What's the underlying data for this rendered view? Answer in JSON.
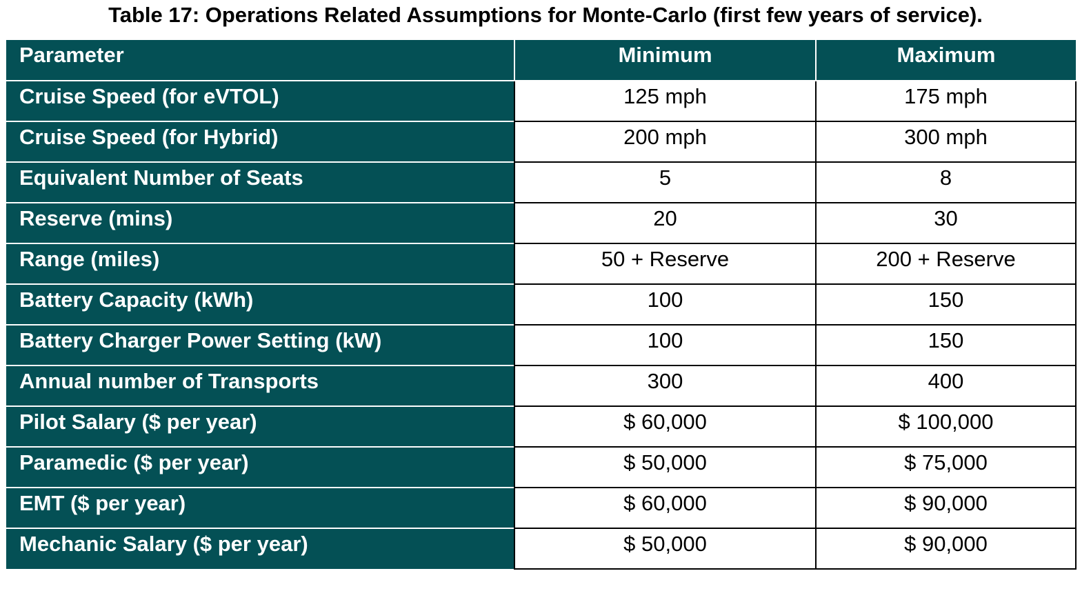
{
  "caption": "Table 17: Operations Related Assumptions for Monte-Carlo (first few years of service).",
  "columns": {
    "parameter": "Parameter",
    "minimum": "Minimum",
    "maximum": "Maximum"
  },
  "rows": [
    {
      "parameter": "Cruise Speed (for eVTOL)",
      "minimum": "125 mph",
      "maximum": "175 mph"
    },
    {
      "parameter": "Cruise Speed (for Hybrid)",
      "minimum": "200 mph",
      "maximum": "300 mph"
    },
    {
      "parameter": "Equivalent Number of Seats",
      "minimum": "5",
      "maximum": "8"
    },
    {
      "parameter": "Reserve (mins)",
      "minimum": "20",
      "maximum": "30"
    },
    {
      "parameter": "Range (miles)",
      "minimum": "50 + Reserve",
      "maximum": "200 + Reserve"
    },
    {
      "parameter": "Battery Capacity (kWh)",
      "minimum": "100",
      "maximum": "150"
    },
    {
      "parameter": "Battery Charger Power Setting (kW)",
      "minimum": "100",
      "maximum": "150"
    },
    {
      "parameter": "Annual number of Transports",
      "minimum": "300",
      "maximum": "400"
    },
    {
      "parameter": "Pilot Salary ($ per year)",
      "minimum": "$ 60,000",
      "maximum": "$ 100,000"
    },
    {
      "parameter": "Paramedic ($ per year)",
      "minimum": "$ 50,000",
      "maximum": "$ 75,000"
    },
    {
      "parameter": "EMT ($ per year)",
      "minimum": "$ 60,000",
      "maximum": "$ 90,000"
    },
    {
      "parameter": "Mechanic Salary ($ per year)",
      "minimum": "$ 50,000",
      "maximum": "$ 90,000"
    }
  ],
  "colors": {
    "header_fill": "#045055",
    "header_text": "#ffffff",
    "cell_border": "#000000"
  }
}
